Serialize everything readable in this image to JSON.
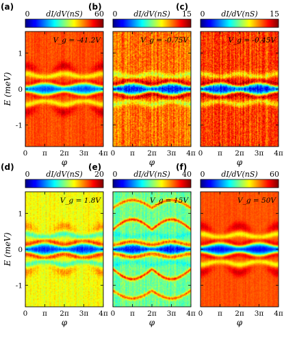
{
  "chart_data": [
    {
      "type": "heatmap",
      "panel_label": "(a)",
      "colorbar": {
        "label": "dI/dV(nS)",
        "min_label": "0",
        "max_label": "60",
        "range": [
          0,
          60
        ]
      },
      "annotation": "V_g = -41.2V",
      "xlabel": "φ",
      "ylabel": "E (meV)",
      "xticks": [
        "0",
        "π",
        "2π",
        "3π",
        "4π"
      ],
      "yticks": [
        "-1",
        "0",
        "1"
      ],
      "xlim": [
        0,
        12.566
      ],
      "ylim": [
        -1.6,
        1.6
      ],
      "style": {
        "bg": 0.8,
        "gap": 0.18,
        "gap_halfwidth": 0.2,
        "coherence": 0.88,
        "noise": 0.06,
        "dark_peak": true
      }
    },
    {
      "type": "heatmap",
      "panel_label": "(b)",
      "colorbar": {
        "label": "dI/dV(nS)",
        "min_label": "0",
        "max_label": "15",
        "range": [
          0,
          15
        ]
      },
      "annotation": "V_g = -0.75V",
      "xlabel": "φ",
      "xticks": [
        "0",
        "π",
        "2π",
        "3π",
        "4π"
      ],
      "xlim": [
        0,
        12.566
      ],
      "ylim": [
        -1.6,
        1.6
      ],
      "style": {
        "bg": 0.76,
        "gap": 0.12,
        "gap_halfwidth": 0.2,
        "coherence": 0.95,
        "noise": 0.14,
        "dark_peak": false
      }
    },
    {
      "type": "heatmap",
      "panel_label": "(c)",
      "colorbar": {
        "label": "dI/dV(nS)",
        "min_label": "0",
        "max_label": "15",
        "range": [
          0,
          15
        ]
      },
      "annotation": "V_g = -0.45V",
      "xlabel": "φ",
      "xticks": [
        "0",
        "π",
        "2π",
        "3π",
        "4π"
      ],
      "xlim": [
        0,
        12.566
      ],
      "ylim": [
        -1.6,
        1.6
      ],
      "style": {
        "bg": 0.82,
        "gap": 0.12,
        "gap_halfwidth": 0.2,
        "coherence": 0.95,
        "noise": 0.14,
        "dark_peak": false
      }
    },
    {
      "type": "heatmap",
      "panel_label": "(d)",
      "colorbar": {
        "label": "dI/dV(nS)",
        "min_label": "0",
        "max_label": "20",
        "range": [
          0,
          20
        ]
      },
      "annotation": "V_g = 1.8V",
      "xlabel": "φ",
      "ylabel": "E (meV)",
      "xticks": [
        "0",
        "π",
        "2π",
        "3π",
        "4π"
      ],
      "yticks": [
        "-1",
        "0",
        "1"
      ],
      "xlim": [
        0,
        12.566
      ],
      "ylim": [
        -1.6,
        1.6
      ],
      "style": {
        "bg": 0.62,
        "gap": 0.15,
        "gap_halfwidth": 0.19,
        "coherence": 0.86,
        "noise": 0.08,
        "dark_peak": true
      }
    },
    {
      "type": "heatmap",
      "panel_label": "(e)",
      "colorbar": {
        "label": "dI/dV(nS)",
        "min_label": "0",
        "max_label": "40",
        "range": [
          0,
          40
        ]
      },
      "annotation": "V_g = 15V",
      "xlabel": "φ",
      "xticks": [
        "0",
        "π",
        "2π",
        "3π",
        "4π"
      ],
      "xlim": [
        0,
        12.566
      ],
      "ylim": [
        -1.6,
        1.6
      ],
      "style": {
        "bg": 0.48,
        "gap": 0.12,
        "gap_halfwidth": 0.17,
        "coherence": 0.84,
        "noise": 0.1,
        "dark_peak": false,
        "andreev_arcs": true
      }
    },
    {
      "type": "heatmap",
      "panel_label": "(f)",
      "colorbar": {
        "label": "dI/dV(nS)",
        "min_label": "0",
        "max_label": "60",
        "range": [
          0,
          60
        ]
      },
      "annotation": "V_g = 50V",
      "xlabel": "φ",
      "xticks": [
        "0",
        "π",
        "2π",
        "3π",
        "4π"
      ],
      "xlim": [
        0,
        12.566
      ],
      "ylim": [
        -1.6,
        1.6
      ],
      "style": {
        "bg": 0.8,
        "gap": 0.12,
        "gap_halfwidth": 0.21,
        "coherence": 0.9,
        "noise": 0.04,
        "dark_peak": true
      }
    }
  ]
}
